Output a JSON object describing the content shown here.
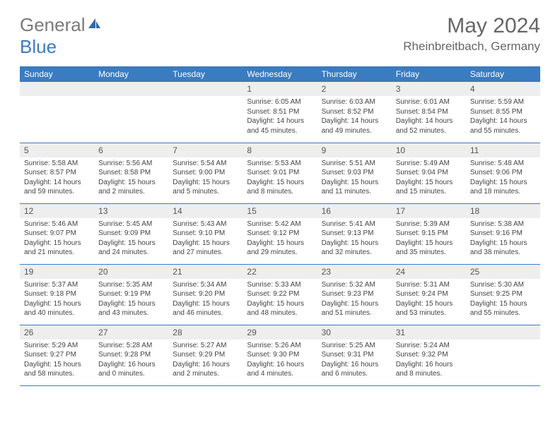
{
  "brand": {
    "name_part1": "General",
    "name_part2": "Blue",
    "icon_color": "#2f6aa8"
  },
  "title": "May 2024",
  "location": "Rheinbreitbach, Germany",
  "header_bg": "#3b7bbf",
  "weekdays": [
    "Sunday",
    "Monday",
    "Tuesday",
    "Wednesday",
    "Thursday",
    "Friday",
    "Saturday"
  ],
  "weeks": [
    [
      null,
      null,
      null,
      {
        "n": "1",
        "sunrise": "6:05 AM",
        "sunset": "8:51 PM",
        "day_h": "14",
        "day_m": "45"
      },
      {
        "n": "2",
        "sunrise": "6:03 AM",
        "sunset": "8:52 PM",
        "day_h": "14",
        "day_m": "49"
      },
      {
        "n": "3",
        "sunrise": "6:01 AM",
        "sunset": "8:54 PM",
        "day_h": "14",
        "day_m": "52"
      },
      {
        "n": "4",
        "sunrise": "5:59 AM",
        "sunset": "8:55 PM",
        "day_h": "14",
        "day_m": "55"
      }
    ],
    [
      {
        "n": "5",
        "sunrise": "5:58 AM",
        "sunset": "8:57 PM",
        "day_h": "14",
        "day_m": "59"
      },
      {
        "n": "6",
        "sunrise": "5:56 AM",
        "sunset": "8:58 PM",
        "day_h": "15",
        "day_m": "2"
      },
      {
        "n": "7",
        "sunrise": "5:54 AM",
        "sunset": "9:00 PM",
        "day_h": "15",
        "day_m": "5"
      },
      {
        "n": "8",
        "sunrise": "5:53 AM",
        "sunset": "9:01 PM",
        "day_h": "15",
        "day_m": "8"
      },
      {
        "n": "9",
        "sunrise": "5:51 AM",
        "sunset": "9:03 PM",
        "day_h": "15",
        "day_m": "11"
      },
      {
        "n": "10",
        "sunrise": "5:49 AM",
        "sunset": "9:04 PM",
        "day_h": "15",
        "day_m": "15"
      },
      {
        "n": "11",
        "sunrise": "5:48 AM",
        "sunset": "9:06 PM",
        "day_h": "15",
        "day_m": "18"
      }
    ],
    [
      {
        "n": "12",
        "sunrise": "5:46 AM",
        "sunset": "9:07 PM",
        "day_h": "15",
        "day_m": "21"
      },
      {
        "n": "13",
        "sunrise": "5:45 AM",
        "sunset": "9:09 PM",
        "day_h": "15",
        "day_m": "24"
      },
      {
        "n": "14",
        "sunrise": "5:43 AM",
        "sunset": "9:10 PM",
        "day_h": "15",
        "day_m": "27"
      },
      {
        "n": "15",
        "sunrise": "5:42 AM",
        "sunset": "9:12 PM",
        "day_h": "15",
        "day_m": "29"
      },
      {
        "n": "16",
        "sunrise": "5:41 AM",
        "sunset": "9:13 PM",
        "day_h": "15",
        "day_m": "32"
      },
      {
        "n": "17",
        "sunrise": "5:39 AM",
        "sunset": "9:15 PM",
        "day_h": "15",
        "day_m": "35"
      },
      {
        "n": "18",
        "sunrise": "5:38 AM",
        "sunset": "9:16 PM",
        "day_h": "15",
        "day_m": "38"
      }
    ],
    [
      {
        "n": "19",
        "sunrise": "5:37 AM",
        "sunset": "9:18 PM",
        "day_h": "15",
        "day_m": "40"
      },
      {
        "n": "20",
        "sunrise": "5:35 AM",
        "sunset": "9:19 PM",
        "day_h": "15",
        "day_m": "43"
      },
      {
        "n": "21",
        "sunrise": "5:34 AM",
        "sunset": "9:20 PM",
        "day_h": "15",
        "day_m": "46"
      },
      {
        "n": "22",
        "sunrise": "5:33 AM",
        "sunset": "9:22 PM",
        "day_h": "15",
        "day_m": "48"
      },
      {
        "n": "23",
        "sunrise": "5:32 AM",
        "sunset": "9:23 PM",
        "day_h": "15",
        "day_m": "51"
      },
      {
        "n": "24",
        "sunrise": "5:31 AM",
        "sunset": "9:24 PM",
        "day_h": "15",
        "day_m": "53"
      },
      {
        "n": "25",
        "sunrise": "5:30 AM",
        "sunset": "9:25 PM",
        "day_h": "15",
        "day_m": "55"
      }
    ],
    [
      {
        "n": "26",
        "sunrise": "5:29 AM",
        "sunset": "9:27 PM",
        "day_h": "15",
        "day_m": "58"
      },
      {
        "n": "27",
        "sunrise": "5:28 AM",
        "sunset": "9:28 PM",
        "day_h": "16",
        "day_m": "0"
      },
      {
        "n": "28",
        "sunrise": "5:27 AM",
        "sunset": "9:29 PM",
        "day_h": "16",
        "day_m": "2"
      },
      {
        "n": "29",
        "sunrise": "5:26 AM",
        "sunset": "9:30 PM",
        "day_h": "16",
        "day_m": "4"
      },
      {
        "n": "30",
        "sunrise": "5:25 AM",
        "sunset": "9:31 PM",
        "day_h": "16",
        "day_m": "6"
      },
      {
        "n": "31",
        "sunrise": "5:24 AM",
        "sunset": "9:32 PM",
        "day_h": "16",
        "day_m": "8"
      },
      null
    ]
  ],
  "labels": {
    "sunrise": "Sunrise:",
    "sunset": "Sunset:",
    "daylight": "Daylight:",
    "hours": "hours",
    "and": "and",
    "minutes": "minutes."
  }
}
